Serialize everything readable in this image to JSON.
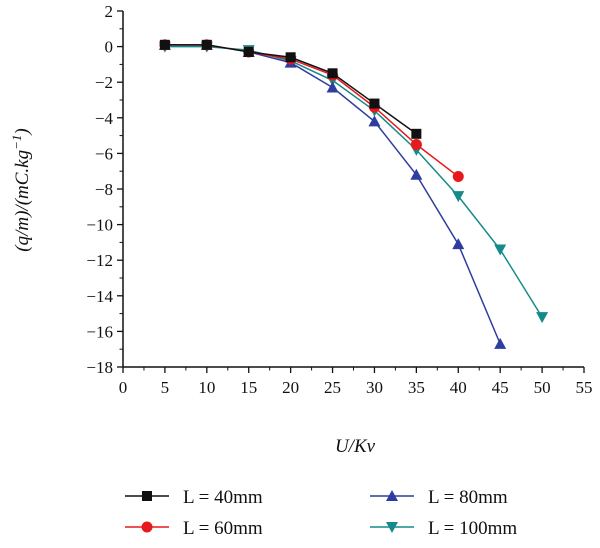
{
  "chart_data": {
    "type": "line",
    "title": "",
    "xlabel": "U/Kv",
    "ylabel_parts": {
      "main": "(q/m)/(mC.kg",
      "sup": "−1",
      "close": ")"
    },
    "xlim": [
      0,
      55
    ],
    "ylim": [
      -18,
      2
    ],
    "xticks": [
      0,
      5,
      10,
      15,
      20,
      25,
      30,
      35,
      40,
      45,
      50,
      55
    ],
    "yticks": [
      2,
      0,
      -2,
      -4,
      -6,
      -8,
      -10,
      -12,
      -14,
      -16,
      -18
    ],
    "grid": false,
    "legend_position": "bottom",
    "series": [
      {
        "name": "L = 40mm",
        "color": "#111111",
        "marker": "square",
        "x": [
          5,
          10,
          15,
          20,
          25,
          30,
          35
        ],
        "y": [
          0.1,
          0.1,
          -0.3,
          -0.6,
          -1.5,
          -3.2,
          -4.9
        ]
      },
      {
        "name": "L = 60mm",
        "color": "#e8191d",
        "marker": "circle",
        "x": [
          5,
          10,
          15,
          20,
          25,
          30,
          35,
          40
        ],
        "y": [
          0.1,
          0.1,
          -0.3,
          -0.7,
          -1.6,
          -3.4,
          -5.5,
          -7.3
        ]
      },
      {
        "name": "L = 80mm",
        "color": "#2f3d9e",
        "marker": "triangle-up",
        "x": [
          5,
          10,
          15,
          20,
          25,
          30,
          35,
          40,
          45
        ],
        "y": [
          0.1,
          0.1,
          -0.3,
          -0.9,
          -2.3,
          -4.2,
          -7.2,
          -11.1,
          -16.7
        ]
      },
      {
        "name": "L = 100mm",
        "color": "#158a8a",
        "marker": "triangle-down",
        "x": [
          5,
          10,
          15,
          20,
          25,
          30,
          35,
          40,
          45,
          50
        ],
        "y": [
          0.0,
          0.0,
          -0.2,
          -0.8,
          -1.9,
          -3.6,
          -5.8,
          -8.4,
          -11.4,
          -15.2
        ]
      }
    ]
  }
}
